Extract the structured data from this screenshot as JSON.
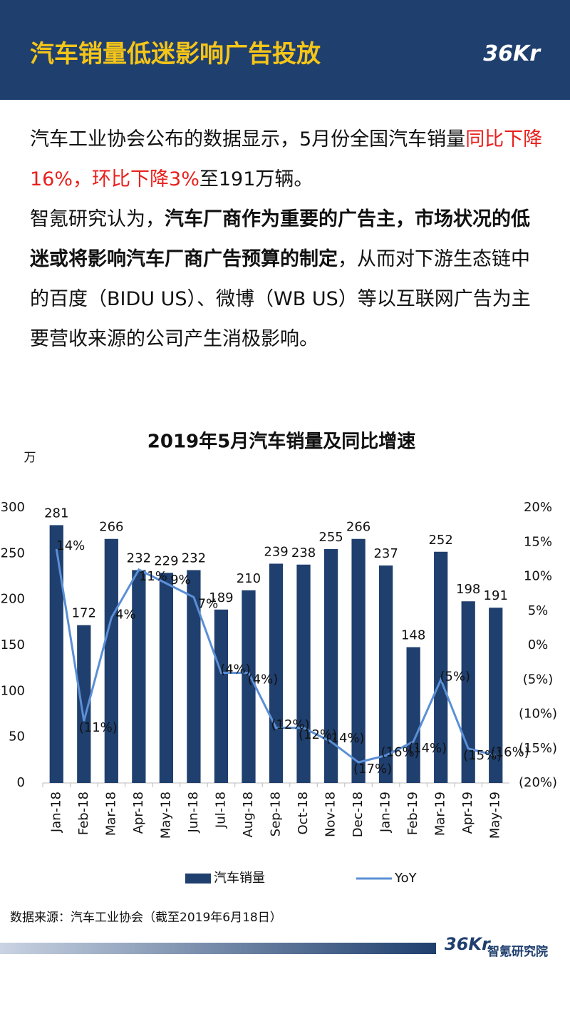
{
  "header": {
    "title": "汽车销量低迷影响广告投放",
    "logo": "36Kr"
  },
  "paragraphs": [
    [
      "汽车工业协会公布的数据显示，5月份全国汽车销量",
      "同比下降16%，环比下降3%",
      "至191万辆。"
    ],
    [
      "智氪研究认为，",
      "汽车厂商作为重要的广告主，市场状况的低迷或将影响汽车厂商广告预算的制定",
      "，从而对下游生态链中的百度（BIDU US）、微博（WB US）等以互联网广告为主要营收来源的公司产生消极影响。"
    ]
  ],
  "chart_data": {
    "type": "bar",
    "title": "2019年5月汽车销量及同比增速",
    "y_unit": "万",
    "categories": [
      "Jan-18",
      "Feb-18",
      "Mar-18",
      "Apr-18",
      "May-18",
      "Jun-18",
      "Jul-18",
      "Aug-18",
      "Sep-18",
      "Oct-18",
      "Nov-18",
      "Dec-18",
      "Jan-19",
      "Feb-19",
      "Mar-19",
      "Apr-19",
      "May-19"
    ],
    "series": [
      {
        "name": "汽车销量",
        "type": "bar",
        "color": "#1f3f6e",
        "values": [
          281,
          172,
          266,
          232,
          229,
          232,
          189,
          210,
          239,
          238,
          255,
          266,
          237,
          148,
          252,
          198,
          191
        ]
      },
      {
        "name": "YoY",
        "type": "line",
        "axis": "y2",
        "color": "#5b8fd6",
        "values": [
          14,
          -11,
          4,
          11,
          9,
          7,
          -4,
          -4,
          -12,
          -12,
          -14,
          -17,
          -16,
          -14,
          -5,
          -15,
          -16
        ],
        "value_labels": [
          "14%",
          "(11%)",
          "4%",
          "11%",
          "9%",
          "7%",
          "(4%)",
          "(4%)",
          "(12%)",
          "(12%)",
          "(14%)",
          "(17%)",
          "(16%)",
          "(14%)",
          "(5%)",
          "(15%)",
          "(16%)"
        ]
      }
    ],
    "ylim": [
      0,
      300
    ],
    "yticks": [
      0,
      50,
      100,
      150,
      200,
      250,
      300
    ],
    "y2lim": [
      -20,
      20
    ],
    "y2ticks": [
      {
        "value": -20,
        "label": "(20%)"
      },
      {
        "value": -15,
        "label": "(15%)"
      },
      {
        "value": -10,
        "label": "(10%)"
      },
      {
        "value": -5,
        "label": "(5%)"
      },
      {
        "value": 0,
        "label": "0%"
      },
      {
        "value": 5,
        "label": "5%"
      },
      {
        "value": 10,
        "label": "10%"
      },
      {
        "value": 15,
        "label": "15%"
      },
      {
        "value": 20,
        "label": "20%"
      }
    ],
    "negative_color": "#e8201c",
    "legend": "bottom"
  },
  "source": "数据来源：汽车工业协会（截至2019年6月18日）",
  "footer": {
    "logo": "36Kr",
    "org": "智氪研究院"
  }
}
